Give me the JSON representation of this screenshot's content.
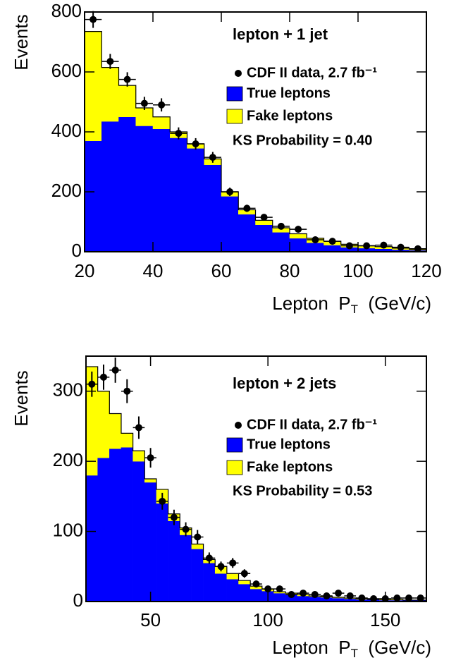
{
  "chart_data": [
    {
      "type": "histogram",
      "ylabel": "Events",
      "xlabel": [
        "Lepton  P",
        "T",
        "  (GeV/c)"
      ],
      "annotations": [
        "lepton + 1 jet",
        "KS  Probability = 0.40"
      ],
      "bins": [
        20,
        25,
        30,
        35,
        40,
        45,
        50,
        55,
        60,
        65,
        70,
        75,
        80,
        85,
        90,
        95,
        100,
        105,
        110,
        115,
        120
      ],
      "series": [
        {
          "name": "True  leptons",
          "color": "#0000ff",
          "values": [
            370,
            435,
            450,
            420,
            410,
            380,
            345,
            290,
            185,
            125,
            90,
            65,
            45,
            30,
            22,
            15,
            12,
            10,
            7,
            5
          ]
        },
        {
          "name": "Fake  leptons",
          "color": "#ffff00",
          "values": [
            365,
            180,
            105,
            60,
            40,
            20,
            15,
            20,
            15,
            15,
            15,
            15,
            15,
            15,
            13,
            10,
            8,
            7,
            5,
            3
          ]
        },
        {
          "name": "CDF II data,  2.7 fb⁻¹",
          "color": "#000000",
          "values": [
            775,
            635,
            575,
            495,
            490,
            395,
            360,
            315,
            200,
            145,
            115,
            85,
            75,
            40,
            35,
            20,
            20,
            22,
            15,
            10
          ],
          "errors": [
            28,
            25,
            24,
            22,
            22,
            20,
            19,
            18,
            14,
            12,
            11,
            9,
            9,
            6,
            6,
            5,
            5,
            5,
            4,
            3
          ]
        }
      ],
      "xlim": [
        20,
        120
      ],
      "xticks": [
        20,
        40,
        60,
        80,
        100,
        120
      ],
      "ylim": [
        0,
        800
      ],
      "yticks": [
        0,
        200,
        400,
        600,
        800
      ]
    },
    {
      "type": "histogram",
      "ylabel": "Events",
      "xlabel": [
        "Lepton  P",
        "T",
        "  (GeV/c)"
      ],
      "annotations": [
        "lepton + 2 jets",
        "KS  Probability = 0.53"
      ],
      "bins": [
        22.5,
        27.5,
        32.5,
        37.5,
        42.5,
        47.5,
        52.5,
        57.5,
        62.5,
        67.5,
        72.5,
        77.5,
        82.5,
        87.5,
        92.5,
        97.5,
        102.5,
        107.5,
        112.5,
        117.5,
        122.5,
        127.5,
        132.5,
        137.5,
        142.5,
        147.5,
        152.5,
        157.5,
        162.5,
        167.5
      ],
      "series": [
        {
          "name": "True  leptons",
          "color": "#0000ff",
          "values": [
            180,
            205,
            218,
            220,
            200,
            170,
            140,
            115,
            95,
            75,
            55,
            40,
            32,
            25,
            18,
            15,
            12,
            10,
            8,
            7,
            6,
            5,
            4,
            3,
            3,
            2,
            2,
            2,
            2
          ]
        },
        {
          "name": "Fake  leptons",
          "color": "#ffff00",
          "values": [
            155,
            95,
            50,
            20,
            15,
            5,
            20,
            10,
            10,
            7,
            5,
            10,
            8,
            5,
            4,
            3,
            2,
            2,
            2,
            1,
            1,
            1,
            1,
            1,
            0,
            1,
            1,
            0,
            0
          ]
        },
        {
          "name": "CDF II data,  2.7 fb⁻¹",
          "color": "#000000",
          "values": [
            310,
            320,
            330,
            300,
            248,
            205,
            143,
            120,
            103,
            92,
            62,
            50,
            55,
            40,
            25,
            18,
            18,
            10,
            12,
            10,
            8,
            12,
            8,
            5,
            4,
            4,
            5,
            5,
            5
          ],
          "errors": [
            18,
            18,
            18,
            17,
            16,
            14,
            12,
            11,
            10,
            10,
            8,
            7,
            7,
            6,
            5,
            4,
            4,
            3,
            3,
            3,
            3,
            3,
            3,
            2,
            2,
            2,
            2,
            2,
            2
          ]
        }
      ],
      "xlim": [
        22.5,
        167.5
      ],
      "xticks": [
        50,
        100,
        150
      ],
      "ylim": [
        0,
        350
      ],
      "yticks": [
        0,
        100,
        200,
        300
      ]
    }
  ]
}
